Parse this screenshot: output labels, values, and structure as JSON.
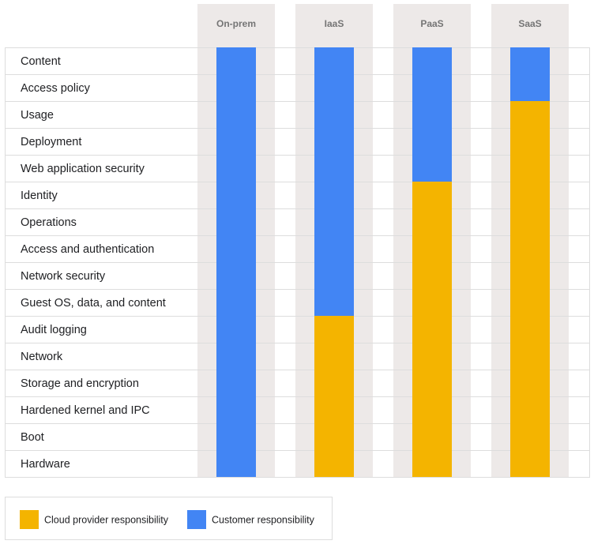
{
  "columns": [
    {
      "label": "On-prem",
      "customer_layers": 16
    },
    {
      "label": "IaaS",
      "customer_layers": 10
    },
    {
      "label": "PaaS",
      "customer_layers": 5
    },
    {
      "label": "SaaS",
      "customer_layers": 2
    }
  ],
  "rows": [
    "Content",
    "Access policy",
    "Usage",
    "Deployment",
    "Web application security",
    "Identity",
    "Operations",
    "Access and authentication",
    "Network security",
    "Guest OS, data, and content",
    "Audit logging",
    "Network",
    "Storage and encryption",
    "Hardened kernel and IPC",
    "Boot",
    "Hardware"
  ],
  "legend": [
    {
      "label": "Cloud provider responsibility",
      "color": "#f4b400"
    },
    {
      "label": "Customer responsibility",
      "color": "#4285f4"
    }
  ]
}
